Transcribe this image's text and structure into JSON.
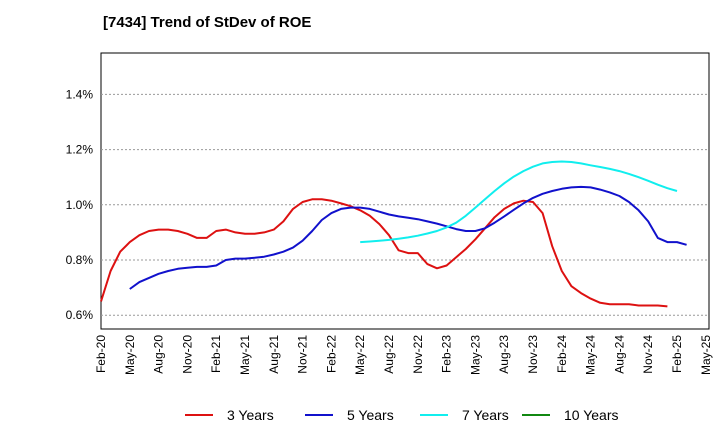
{
  "chart_data": {
    "type": "line",
    "title": "[7434]  Trend of StDev of ROE",
    "xlabel": "",
    "ylabel": "",
    "ylim": [
      0.55,
      1.55
    ],
    "yticks": [
      {
        "value": 0.6,
        "label": "0.6%"
      },
      {
        "value": 0.8,
        "label": "0.8%"
      },
      {
        "value": 1.0,
        "label": "1.0%"
      },
      {
        "value": 1.2,
        "label": "1.2%"
      },
      {
        "value": 1.4,
        "label": "1.4%"
      }
    ],
    "xticks": [
      "Feb-20",
      "May-20",
      "Aug-20",
      "Nov-20",
      "Feb-21",
      "May-21",
      "Aug-21",
      "Nov-21",
      "Feb-22",
      "May-22",
      "Aug-22",
      "Nov-22",
      "Feb-23",
      "May-23",
      "Aug-23",
      "Nov-23",
      "Feb-24",
      "May-24",
      "Aug-24",
      "Nov-24",
      "Feb-25",
      "May-25"
    ],
    "grid": true,
    "legend_position": "bottom",
    "series": [
      {
        "name": "3 Years",
        "color": "#dd1111",
        "start_month": 0,
        "values": [
          0.65,
          0.76,
          0.83,
          0.865,
          0.89,
          0.905,
          0.91,
          0.91,
          0.905,
          0.895,
          0.88,
          0.88,
          0.905,
          0.91,
          0.9,
          0.895,
          0.895,
          0.9,
          0.91,
          0.94,
          0.985,
          1.01,
          1.02,
          1.02,
          1.015,
          1.005,
          0.995,
          0.98,
          0.96,
          0.93,
          0.89,
          0.835,
          0.825,
          0.825,
          0.785,
          0.77,
          0.78,
          0.81,
          0.84,
          0.875,
          0.915,
          0.955,
          0.985,
          1.005,
          1.015,
          1.01,
          0.97,
          0.85,
          0.76,
          0.705,
          0.68,
          0.66,
          0.645,
          0.64,
          0.64,
          0.64,
          0.635,
          0.635,
          0.635,
          0.632
        ]
      },
      {
        "name": "5 Years",
        "color": "#1111cc",
        "start_month": 3,
        "values": [
          0.695,
          0.72,
          0.735,
          0.75,
          0.76,
          0.768,
          0.772,
          0.775,
          0.775,
          0.78,
          0.8,
          0.805,
          0.805,
          0.808,
          0.812,
          0.82,
          0.83,
          0.845,
          0.87,
          0.905,
          0.945,
          0.97,
          0.985,
          0.99,
          0.99,
          0.985,
          0.975,
          0.965,
          0.958,
          0.953,
          0.948,
          0.94,
          0.932,
          0.922,
          0.912,
          0.905,
          0.905,
          0.915,
          0.935,
          0.958,
          0.982,
          1.005,
          1.025,
          1.04,
          1.05,
          1.058,
          1.063,
          1.065,
          1.063,
          1.055,
          1.045,
          1.032,
          1.01,
          0.98,
          0.94,
          0.88,
          0.865,
          0.865,
          0.855
        ]
      },
      {
        "name": "7 Years",
        "color": "#11eeee",
        "start_month": 27,
        "values": [
          0.865,
          0.867,
          0.87,
          0.873,
          0.877,
          0.882,
          0.888,
          0.896,
          0.905,
          0.918,
          0.935,
          0.96,
          0.99,
          1.02,
          1.05,
          1.078,
          1.102,
          1.122,
          1.138,
          1.15,
          1.155,
          1.157,
          1.155,
          1.15,
          1.143,
          1.137,
          1.13,
          1.122,
          1.112,
          1.1,
          1.087,
          1.073,
          1.06,
          1.05
        ]
      },
      {
        "name": "10 Years",
        "color": "#118811",
        "start_month": 0,
        "values": []
      }
    ]
  }
}
